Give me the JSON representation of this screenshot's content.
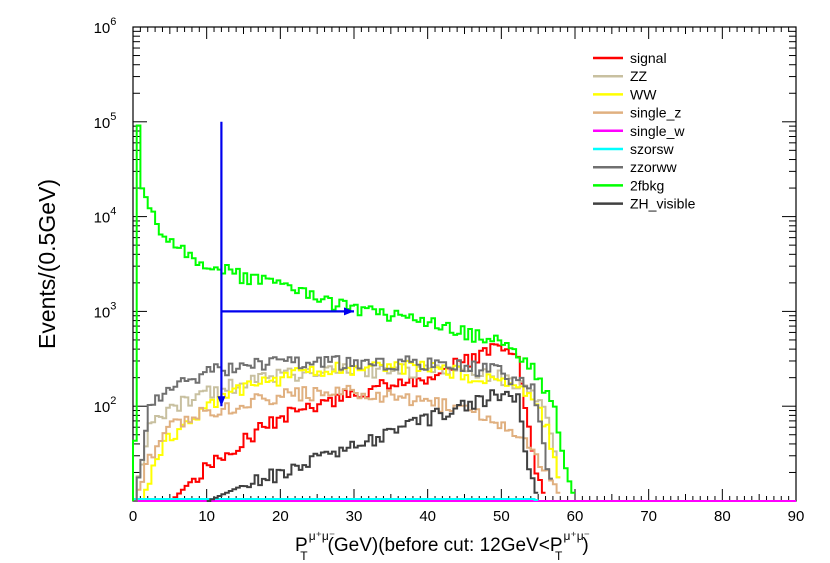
{
  "chart_data": {
    "type": "histogram",
    "xlim": [
      0,
      90
    ],
    "ylim": [
      10,
      1000000
    ],
    "yscale": "log",
    "grid": false,
    "legend_position": "top-right",
    "xlabel": {
      "base": "P",
      "sub": "T",
      "sup": "μ⁺μ⁻",
      "mid": "(GeV)(before cut: 12GeV<P",
      "sub2": "T",
      "sup2": "μ⁺μ⁻",
      "end": ")"
    },
    "ylabel": "Events/(0.5GeV)",
    "x_ticks": [
      0,
      10,
      20,
      30,
      40,
      50,
      60,
      70,
      80,
      90
    ],
    "y_ticks": [
      {
        "base": "10",
        "exp": "2",
        "value": 100
      },
      {
        "base": "10",
        "exp": "3",
        "value": 1000
      },
      {
        "base": "10",
        "exp": "4",
        "value": 10000
      },
      {
        "base": "10",
        "exp": "5",
        "value": 100000
      },
      {
        "base": "10",
        "exp": "6",
        "value": 1000000
      }
    ],
    "cut_arrows": [
      {
        "from": [
          12,
          100000
        ],
        "to": [
          12,
          100
        ]
      },
      {
        "from": [
          12,
          1000
        ],
        "to": [
          30,
          1000
        ]
      }
    ],
    "series": [
      {
        "name": "signal",
        "color": "#ff0000",
        "x": [
          0,
          5,
          10,
          15,
          20,
          25,
          30,
          35,
          40,
          45,
          49,
          52,
          53,
          54,
          55,
          56
        ],
        "y": [
          10,
          10,
          25,
          45,
          80,
          100,
          140,
          175,
          210,
          300,
          400,
          300,
          100,
          30,
          15,
          10
        ]
      },
      {
        "name": "ZZ",
        "color": "#c8c0a0",
        "x": [
          0,
          2,
          5,
          10,
          15,
          20,
          25,
          30,
          35,
          40,
          45,
          50,
          54,
          56,
          57,
          58
        ],
        "y": [
          10,
          60,
          100,
          140,
          180,
          210,
          230,
          240,
          240,
          240,
          230,
          200,
          150,
          70,
          30,
          10
        ]
      },
      {
        "name": "WW",
        "color": "#ffff00",
        "x": [
          1,
          3,
          5,
          10,
          15,
          20,
          25,
          30,
          35,
          40,
          45,
          50,
          54,
          56,
          57,
          58
        ],
        "y": [
          10,
          30,
          50,
          100,
          160,
          200,
          240,
          260,
          270,
          250,
          220,
          180,
          130,
          60,
          25,
          10
        ]
      },
      {
        "name": "single_z",
        "color": "#e0b080",
        "x": [
          0,
          2,
          5,
          10,
          15,
          20,
          25,
          30,
          35,
          40,
          45,
          50,
          53,
          55,
          57,
          58
        ],
        "y": [
          10,
          30,
          60,
          90,
          110,
          130,
          140,
          140,
          130,
          110,
          90,
          60,
          40,
          25,
          15,
          10
        ]
      },
      {
        "name": "single_w",
        "color": "#ff00ff",
        "x": [
          0,
          90
        ],
        "y": [
          10,
          10
        ]
      },
      {
        "name": "szorsw",
        "color": "#00ffff",
        "x": [
          0,
          54,
          55
        ],
        "y": [
          10.5,
          10.5,
          10
        ]
      },
      {
        "name": "zzorww",
        "color": "#707070",
        "x": [
          0,
          2,
          5,
          10,
          15,
          20,
          25,
          30,
          35,
          40,
          45,
          50,
          54,
          55,
          56,
          57
        ],
        "y": [
          10,
          100,
          150,
          230,
          270,
          290,
          290,
          290,
          290,
          280,
          260,
          230,
          150,
          60,
          25,
          10
        ]
      },
      {
        "name": "2fbkg",
        "color": "#00ff00",
        "x": [
          0,
          0.5,
          1,
          2,
          3,
          4,
          5,
          7,
          10,
          15,
          20,
          25,
          30,
          35,
          40,
          45,
          50,
          53,
          55,
          57,
          58,
          59,
          60
        ],
        "y": [
          50,
          110000,
          20000,
          12000,
          8000,
          6500,
          5500,
          4500,
          3000,
          2300,
          1800,
          1400,
          1050,
          900,
          750,
          600,
          450,
          300,
          200,
          100,
          40,
          15,
          10
        ]
      },
      {
        "name": "ZH_visible",
        "color": "#404040",
        "x": [
          10,
          15,
          20,
          25,
          30,
          35,
          40,
          45,
          50,
          52,
          53,
          54,
          55
        ],
        "y": [
          10,
          15,
          20,
          28,
          38,
          55,
          75,
          105,
          140,
          120,
          40,
          15,
          10
        ]
      }
    ]
  }
}
